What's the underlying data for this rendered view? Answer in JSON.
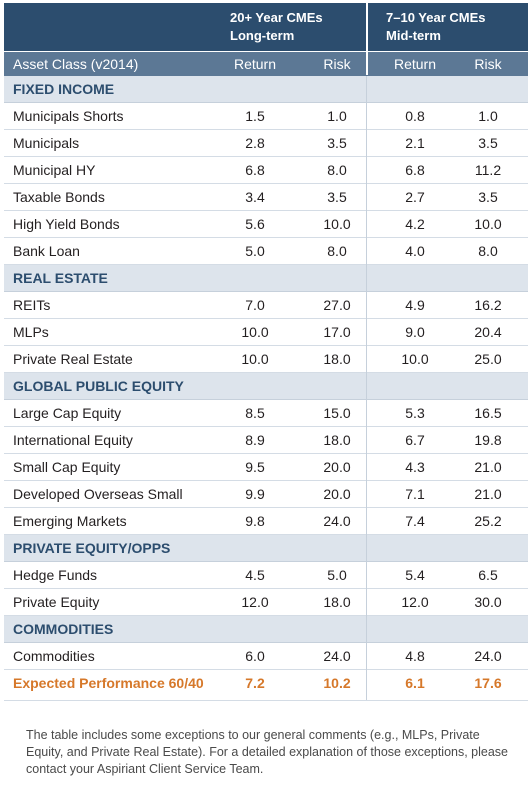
{
  "header": {
    "group1_line1": "20+ Year CMEs",
    "group1_line2": "Long-term",
    "group2_line1": "7–10 Year CMEs",
    "group2_line2": "Mid-term",
    "asset_class": "Asset Class (v2014)",
    "return1": "Return",
    "risk1": "Risk",
    "return2": "Return",
    "risk2": "Risk"
  },
  "rows": [
    {
      "type": "section",
      "label": "FIXED INCOME"
    },
    {
      "type": "data",
      "label": "Municipals Shorts",
      "lt_return": "1.5",
      "lt_risk": "1.0",
      "mt_return": "0.8",
      "mt_risk": "1.0"
    },
    {
      "type": "data",
      "label": "Municipals",
      "lt_return": "2.8",
      "lt_risk": "3.5",
      "mt_return": "2.1",
      "mt_risk": "3.5"
    },
    {
      "type": "data",
      "label": "Municipal HY",
      "lt_return": "6.8",
      "lt_risk": "8.0",
      "mt_return": "6.8",
      "mt_risk": "11.2"
    },
    {
      "type": "data",
      "label": "Taxable Bonds",
      "lt_return": "3.4",
      "lt_risk": "3.5",
      "mt_return": "2.7",
      "mt_risk": "3.5"
    },
    {
      "type": "data",
      "label": "High Yield Bonds",
      "lt_return": "5.6",
      "lt_risk": "10.0",
      "mt_return": "4.2",
      "mt_risk": "10.0"
    },
    {
      "type": "data",
      "label": "Bank Loan",
      "lt_return": "5.0",
      "lt_risk": "8.0",
      "mt_return": "4.0",
      "mt_risk": "8.0"
    },
    {
      "type": "section",
      "label": "REAL ESTATE"
    },
    {
      "type": "data",
      "label": "REITs",
      "lt_return": "7.0",
      "lt_risk": "27.0",
      "mt_return": "4.9",
      "mt_risk": "16.2"
    },
    {
      "type": "data",
      "label": "MLPs",
      "lt_return": "10.0",
      "lt_risk": "17.0",
      "mt_return": "9.0",
      "mt_risk": "20.4"
    },
    {
      "type": "data",
      "label": "Private Real Estate",
      "lt_return": "10.0",
      "lt_risk": "18.0",
      "mt_return": "10.0",
      "mt_risk": "25.0"
    },
    {
      "type": "section",
      "label": "GLOBAL PUBLIC EQUITY"
    },
    {
      "type": "data",
      "label": "Large Cap Equity",
      "lt_return": "8.5",
      "lt_risk": "15.0",
      "mt_return": "5.3",
      "mt_risk": "16.5"
    },
    {
      "type": "data",
      "label": "International Equity",
      "lt_return": "8.9",
      "lt_risk": "18.0",
      "mt_return": "6.7",
      "mt_risk": "19.8"
    },
    {
      "type": "data",
      "label": "Small Cap Equity",
      "lt_return": "9.5",
      "lt_risk": "20.0",
      "mt_return": "4.3",
      "mt_risk": "21.0"
    },
    {
      "type": "data",
      "label": "Developed Overseas Small",
      "lt_return": "9.9",
      "lt_risk": "20.0",
      "mt_return": "7.1",
      "mt_risk": "21.0"
    },
    {
      "type": "data",
      "label": "Emerging Markets",
      "lt_return": "9.8",
      "lt_risk": "24.0",
      "mt_return": "7.4",
      "mt_risk": "25.2"
    },
    {
      "type": "section",
      "label": "PRIVATE EQUITY/OPPS"
    },
    {
      "type": "data",
      "label": "Hedge Funds",
      "lt_return": "4.5",
      "lt_risk": "5.0",
      "mt_return": "5.4",
      "mt_risk": "6.5"
    },
    {
      "type": "data",
      "label": "Private Equity",
      "lt_return": "12.0",
      "lt_risk": "18.0",
      "mt_return": "12.0",
      "mt_risk": "30.0"
    },
    {
      "type": "section",
      "label": "COMMODITIES"
    },
    {
      "type": "data",
      "label": "Commodities",
      "lt_return": "6.0",
      "lt_risk": "24.0",
      "mt_return": "4.8",
      "mt_risk": "24.0"
    },
    {
      "type": "perf",
      "label": "Expected Performance 60/40",
      "lt_return": "7.2",
      "lt_risk": "10.2",
      "mt_return": "6.1",
      "mt_risk": "17.6"
    }
  ],
  "note": "The table includes some exceptions to our general comments (e.g., MLPs, Private Equity, and Private Real Estate). For a detailed explanation of those exceptions, please contact your Aspiriant Client Service Team.",
  "colors": {
    "header_dark": "#2c4d6e",
    "header_sub": "#5c7895",
    "section_bg": "#dde4ec",
    "highlight": "#d6782a"
  }
}
